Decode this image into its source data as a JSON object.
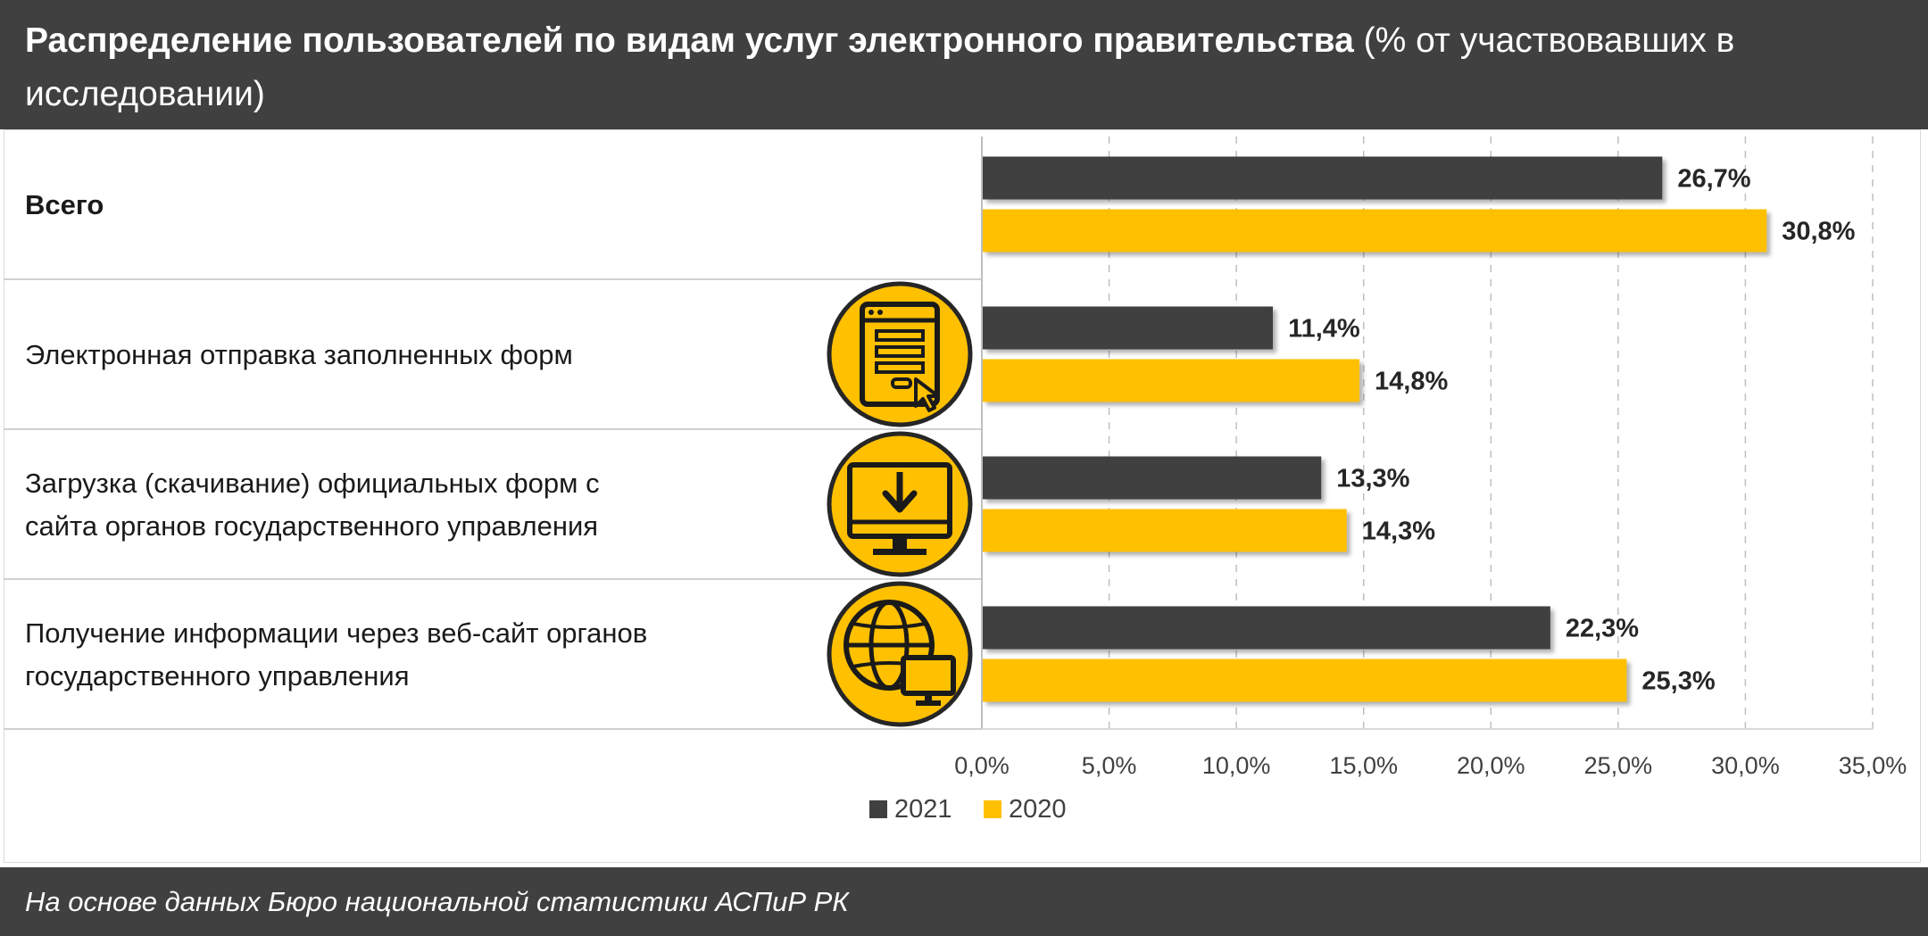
{
  "header": {
    "title_bold": "Распределение пользователей по видам услуг электронного правительства",
    "title_rest": " (% от участвовавших в исследовании)"
  },
  "footer": {
    "source": "На основе данных Бюро национальной статистики АСПиР РК"
  },
  "colors": {
    "series_2021": "#404040",
    "series_2020": "#FFC000",
    "header_bg": "#404040",
    "icon_ring": "#262626"
  },
  "chart_data": {
    "type": "bar",
    "orientation": "horizontal",
    "title": "",
    "xlabel": "",
    "ylabel": "",
    "xlim": [
      0,
      35
    ],
    "x_ticks": [
      "0,0%",
      "5,0%",
      "10,0%",
      "15,0%",
      "20,0%",
      "25,0%",
      "30,0%",
      "35,0%"
    ],
    "grid": "vertical dashed",
    "legend_position": "bottom",
    "categories": [
      {
        "label": "Всего",
        "bold": true,
        "icon": "none"
      },
      {
        "label": "Электронная отправка заполненных форм",
        "bold": false,
        "icon": "web-form-icon"
      },
      {
        "label": "Загрузка (скачивание) официальных форм с сайта органов государственного управления",
        "bold": false,
        "icon": "monitor-download-icon"
      },
      {
        "label": "Получение информации через веб-сайт органов государственного управления",
        "bold": false,
        "icon": "globe-computer-icon"
      }
    ],
    "series": [
      {
        "name": "2021",
        "values": [
          26.7,
          11.4,
          13.3,
          22.3
        ],
        "labels": [
          "26,7%",
          "11,4%",
          "13,3%",
          "22,3%"
        ]
      },
      {
        "name": "2020",
        "values": [
          30.8,
          14.8,
          14.3,
          25.3
        ],
        "labels": [
          "30,8%",
          "14,8%",
          "14,3%",
          "25,3%"
        ]
      }
    ]
  }
}
